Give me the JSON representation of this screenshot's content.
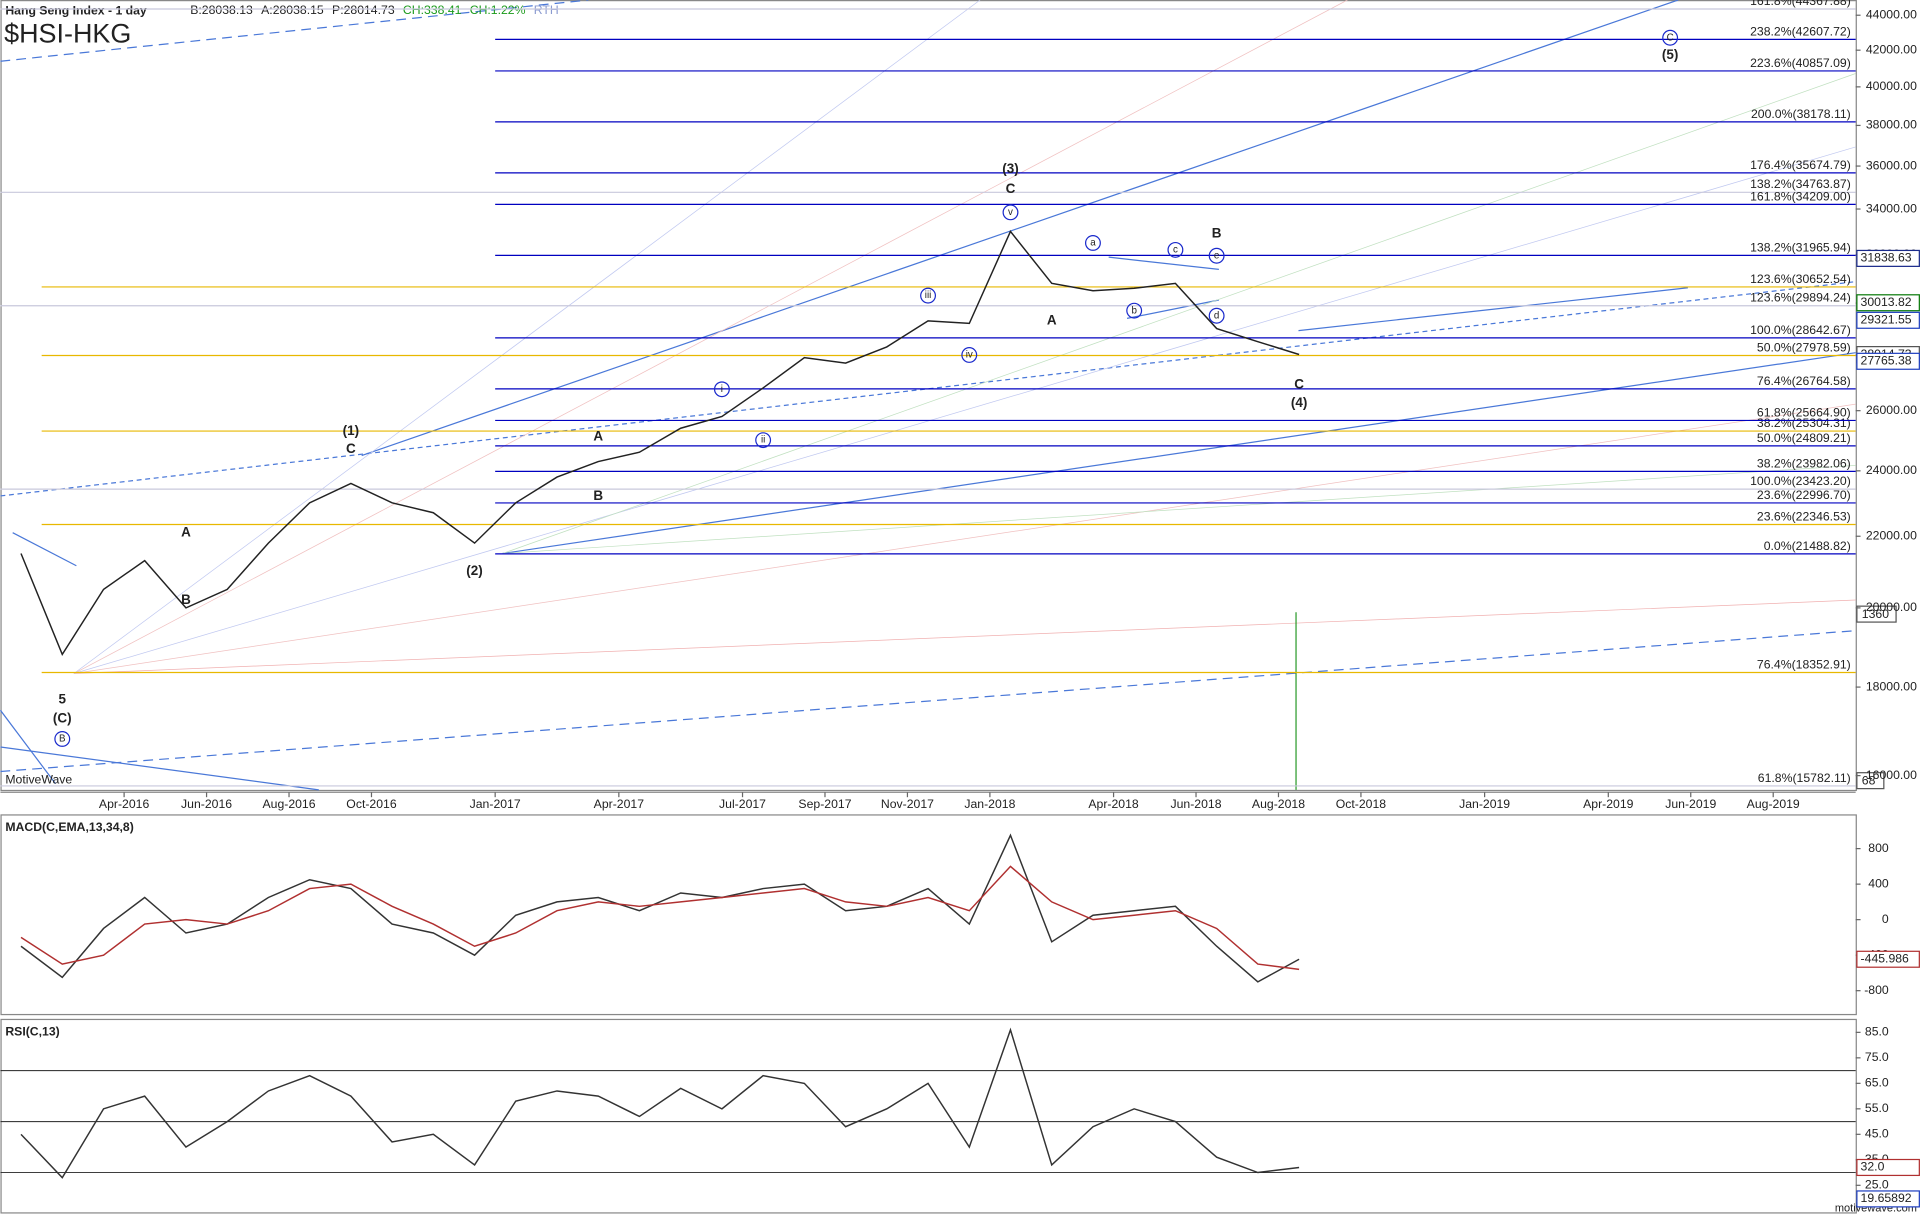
{
  "chart_data": [
    {
      "type": "line",
      "title": "Hang Seng Index - 1 day",
      "symbol": "$HSI-HKG",
      "quote_fields": [
        "B:28038.13",
        "A:28038.15",
        "P:28014.73",
        "CH:338.41",
        "CH:1.22%",
        "RTH"
      ],
      "log": true,
      "xlim": [
        "Jan-2016",
        "Oct-2019"
      ],
      "xticks": [
        "Apr-2016",
        "Jun-2016",
        "Aug-2016",
        "Oct-2016",
        "Jan-2017",
        "Apr-2017",
        "Jul-2017",
        "Sep-2017",
        "Nov-2017",
        "Jan-2018",
        "Apr-2018",
        "Jun-2018",
        "Aug-2018",
        "Oct-2018",
        "Jan-2019",
        "Apr-2019",
        "Jun-2019",
        "Aug-2019"
      ],
      "ylim": [
        15700,
        44900
      ],
      "yticks": [
        {
          "value": 44000,
          "label": "44000.00"
        },
        {
          "value": 42000,
          "label": "42000.00"
        },
        {
          "value": 40000,
          "label": "40000.00"
        },
        {
          "value": 38000,
          "label": "38000.00"
        },
        {
          "value": 36000,
          "label": "36000.00"
        },
        {
          "value": 34000,
          "label": "34000.00"
        },
        {
          "value": 32000,
          "label": "32000.00"
        },
        {
          "value": 30000,
          "label": "30000.00"
        },
        {
          "value": 28000,
          "label": "28000.00"
        },
        {
          "value": 26000,
          "label": "26000.00"
        },
        {
          "value": 24000,
          "label": "24000.00"
        },
        {
          "value": 22000,
          "label": "22000.00"
        },
        {
          "value": 20000,
          "label": "20000.00"
        },
        {
          "value": 18000,
          "label": "18000.00"
        },
        {
          "value": 16000,
          "label": "16000.00"
        }
      ],
      "x": [
        "Jan-2016",
        "Feb-2016",
        "Mar-2016",
        "Apr-2016",
        "May-2016",
        "Jun-2016",
        "Jul-2016",
        "Aug-2016",
        "Sep-2016",
        "Oct-2016",
        "Nov-2016",
        "Dec-2016",
        "Jan-2017",
        "Feb-2017",
        "Mar-2017",
        "Apr-2017",
        "May-2017",
        "Jun-2017",
        "Jul-2017",
        "Aug-2017",
        "Sep-2017",
        "Oct-2017",
        "Nov-2017",
        "Dec-2017",
        "Jan-2018",
        "Feb-2018",
        "Mar-2018",
        "Apr-2018",
        "May-2018",
        "Jun-2018",
        "Jul-2018",
        "Aug-2018"
      ],
      "series": [
        {
          "color": "#222222",
          "values": [
            21500,
            18800,
            20500,
            21300,
            20000,
            20500,
            21800,
            23000,
            23600,
            23000,
            22700,
            21800,
            23000,
            23800,
            24300,
            24600,
            25400,
            25800,
            26800,
            27900,
            27700,
            28300,
            29300,
            29200,
            33000,
            30800,
            30500,
            30600,
            30800,
            29000,
            28500,
            28014.73
          ]
        }
      ],
      "fib_groups": [
        {
          "color": "#c8c8dc",
          "start": "Jan-2016",
          "levels": [
            {
              "value": 44367.88,
              "label": "161.8%(44367.88)"
            },
            {
              "value": 34763.87,
              "label": "138.2%(34763.87)"
            },
            {
              "value": 29894.24,
              "label": "123.6%(29894.24)"
            },
            {
              "value": 23423.2,
              "label": "100.0%(23423.20)"
            },
            {
              "value": 15782.11,
              "label": "61.8%(15782.11)"
            }
          ]
        },
        {
          "color": "#e8b800",
          "start": "Feb-2016",
          "levels": [
            {
              "value": 30652.54,
              "label": "123.6%(30652.54)"
            },
            {
              "value": 27978.59,
              "label": "50.0%(27978.59)"
            },
            {
              "value": 25304.31,
              "label": "38.2%(25304.31)"
            },
            {
              "value": 22346.53,
              "label": "23.6%(22346.53)"
            },
            {
              "value": 18352.91,
              "label": "76.4%(18352.91)"
            }
          ]
        },
        {
          "color": "#0000c0",
          "start": "Jan-2017",
          "levels": [
            {
              "value": 42607.72,
              "label": "238.2%(42607.72)"
            },
            {
              "value": 40857.09,
              "label": "223.6%(40857.09)"
            },
            {
              "value": 38178.11,
              "label": "200.0%(38178.11)"
            },
            {
              "value": 35674.79,
              "label": "176.4%(35674.79)"
            },
            {
              "value": 34209.0,
              "label": "161.8%(34209.00)"
            },
            {
              "value": 31965.94,
              "label": "138.2%(31965.94)"
            },
            {
              "value": 28642.67,
              "label": "100.0%(28642.67)"
            },
            {
              "value": 26764.58,
              "label": "76.4%(26764.58)"
            },
            {
              "value": 25664.9,
              "label": "61.8%(25664.90)"
            },
            {
              "value": 24809.21,
              "label": "50.0%(24809.21)"
            },
            {
              "value": 23982.06,
              "label": "38.2%(23982.06)"
            },
            {
              "value": 22996.7,
              "label": "23.6%(22996.70)"
            },
            {
              "value": 21488.82,
              "label": "0.0%(21488.82)"
            }
          ]
        }
      ],
      "annotations": [
        {
          "text": "5",
          "x": "Feb-2016",
          "y": 17700
        },
        {
          "text": "(C)",
          "x": "Feb-2016",
          "y": 17250
        },
        {
          "text": "B",
          "x": "Feb-2016",
          "y": 16800,
          "circled": true
        },
        {
          "text": "A",
          "x": "May-2016",
          "y": 22100
        },
        {
          "text": "B",
          "x": "May-2016",
          "y": 20200
        },
        {
          "text": "(1)",
          "x": "Sep-2016",
          "y": 25300
        },
        {
          "text": "C",
          "x": "Sep-2016",
          "y": 24700
        },
        {
          "text": "(2)",
          "x": "Dec-2016",
          "y": 21000
        },
        {
          "text": "A",
          "x": "Mar-2017",
          "y": 25100
        },
        {
          "text": "B",
          "x": "Mar-2017",
          "y": 23200
        },
        {
          "text": "i",
          "x": "Jun-2017",
          "y": 26750,
          "circled": true
        },
        {
          "text": "ii",
          "x": "Jul-2017",
          "y": 25000,
          "circled": true
        },
        {
          "text": "iii",
          "x": "Nov-2017",
          "y": 30300,
          "circled": true
        },
        {
          "text": "iv",
          "x": "Dec-2017",
          "y": 28000,
          "circled": true
        },
        {
          "text": "(3)",
          "x": "Jan-2018",
          "y": 35850
        },
        {
          "text": "C",
          "x": "Jan-2018",
          "y": 34900
        },
        {
          "text": "v",
          "x": "Jan-2018",
          "y": 33850,
          "circled": true
        },
        {
          "text": "A",
          "x": "Feb-2018",
          "y": 29300
        },
        {
          "text": "a",
          "x": "Mar-2018",
          "y": 32500,
          "circled": true
        },
        {
          "text": "b",
          "x": "Apr-2018",
          "y": 29700,
          "circled": true
        },
        {
          "text": "c",
          "x": "May-2018",
          "y": 32200,
          "circled": true
        },
        {
          "text": "d",
          "x": "Jun-2018",
          "y": 29500,
          "circled": true
        },
        {
          "text": "e",
          "x": "Jun-2018",
          "y": 31950,
          "circled": true
        },
        {
          "text": "B",
          "x": "Jun-2018",
          "y": 32900
        },
        {
          "text": "C",
          "x": "Aug-2018",
          "y": 26900
        },
        {
          "text": "(4)",
          "x": "Aug-2018",
          "y": 26250
        },
        {
          "text": "C",
          "x": "May-2019",
          "y": 42700,
          "circled": true
        },
        {
          "text": "(5)",
          "x": "May-2019",
          "y": 41700
        }
      ],
      "price_tags": [
        {
          "value": 31838.63,
          "label": "31838.63",
          "color": "#1a2a8a"
        },
        {
          "value": 30013.82,
          "label": "30013.82",
          "color": "#0a7a0a"
        },
        {
          "value": 29321.55,
          "label": "29321.55",
          "color": "#2040c0"
        },
        {
          "value": 28014.73,
          "label": "28014.73",
          "color": "#555555"
        },
        {
          "value": 27765.38,
          "label": "27765.38",
          "color": "#2040c0"
        }
      ],
      "other_tags": [
        "1360",
        "68"
      ],
      "watermark": "MotiveWave"
    },
    {
      "type": "line",
      "title": "MACD(C,EMA,13,34,8)",
      "ylim": [
        -1062,
        1186
      ],
      "yticks": [
        800,
        400,
        0,
        -400,
        -800
      ],
      "x": [
        "Jan-2016",
        "Feb-2016",
        "Mar-2016",
        "Apr-2016",
        "May-2016",
        "Jun-2016",
        "Jul-2016",
        "Aug-2016",
        "Sep-2016",
        "Oct-2016",
        "Nov-2016",
        "Dec-2016",
        "Jan-2017",
        "Feb-2017",
        "Mar-2017",
        "Apr-2017",
        "May-2017",
        "Jun-2017",
        "Jul-2017",
        "Aug-2017",
        "Sep-2017",
        "Oct-2017",
        "Nov-2017",
        "Dec-2017",
        "Jan-2018",
        "Feb-2018",
        "Mar-2018",
        "Apr-2018",
        "May-2018",
        "Jun-2018",
        "Jul-2018",
        "Aug-2018"
      ],
      "series": [
        {
          "color": "#333333",
          "values": [
            -300,
            -650,
            -100,
            250,
            -150,
            -50,
            250,
            450,
            350,
            -50,
            -150,
            -400,
            50,
            200,
            250,
            100,
            300,
            250,
            350,
            400,
            100,
            150,
            350,
            -50,
            950,
            -250,
            50,
            100,
            150,
            -300,
            -700,
            -445.986
          ]
        },
        {
          "color": "#b03030",
          "values": [
            -200,
            -500,
            -400,
            -50,
            0,
            -50,
            100,
            350,
            400,
            150,
            -50,
            -300,
            -150,
            100,
            200,
            150,
            200,
            250,
            300,
            350,
            200,
            150,
            250,
            100,
            600,
            200,
            0,
            50,
            100,
            -100,
            -500,
            -560
          ]
        }
      ],
      "price_tags": [
        {
          "value": -445.986,
          "label": "-445.986",
          "color": "#b03030"
        }
      ]
    },
    {
      "type": "line",
      "title": "RSI(C,13)",
      "ylim": [
        14.4,
        90.3
      ],
      "yticks": [
        {
          "value": 85,
          "label": "85.0"
        },
        {
          "value": 75,
          "label": "75.0"
        },
        {
          "value": 65,
          "label": "65.0"
        },
        {
          "value": 55,
          "label": "55.0"
        },
        {
          "value": 45,
          "label": "45.0"
        },
        {
          "value": 35,
          "label": "35.0"
        },
        {
          "value": 25,
          "label": "25.0"
        }
      ],
      "levels": [
        70,
        50,
        30
      ],
      "x": [
        "Jan-2016",
        "Feb-2016",
        "Mar-2016",
        "Apr-2016",
        "May-2016",
        "Jun-2016",
        "Jul-2016",
        "Aug-2016",
        "Sep-2016",
        "Oct-2016",
        "Nov-2016",
        "Dec-2016",
        "Jan-2017",
        "Feb-2017",
        "Mar-2017",
        "Apr-2017",
        "May-2017",
        "Jun-2017",
        "Jul-2017",
        "Aug-2017",
        "Sep-2017",
        "Oct-2017",
        "Nov-2017",
        "Dec-2017",
        "Jan-2018",
        "Feb-2018",
        "Mar-2018",
        "Apr-2018",
        "May-2018",
        "Jun-2018",
        "Jul-2018",
        "Aug-2018"
      ],
      "series": [
        {
          "color": "#333333",
          "values": [
            45,
            28,
            55,
            60,
            40,
            50,
            62,
            68,
            60,
            42,
            45,
            33,
            58,
            62,
            60,
            52,
            63,
            55,
            68,
            65,
            48,
            55,
            65,
            40,
            86,
            33,
            48,
            55,
            50,
            36,
            30,
            32
          ]
        }
      ],
      "price_tags": [
        {
          "value": 32,
          "label": "32.0",
          "color": "#b03030"
        },
        {
          "value": 19.65892,
          "label": "19.65892",
          "color": "#2040c0"
        }
      ]
    }
  ],
  "footer": "motivewave.com"
}
